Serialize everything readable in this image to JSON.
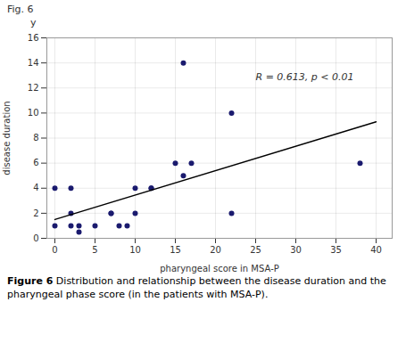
{
  "chart_data": {
    "type": "scatter",
    "fig_label": "Fig. 6",
    "y_axis_label": "y",
    "xlabel": "pharyngeal score in MSA-P",
    "ylabel": "disease duration",
    "caption_label": "Figure 6",
    "caption": " Distribution and relationship between the disease duration and the pharyngeal phase score (in the patients with MSA-P).",
    "series": [
      {
        "type": "scatter",
        "color": "#1a1a6e",
        "x": [
          0,
          0,
          2,
          2,
          2,
          3,
          3,
          5,
          7,
          7,
          8,
          9,
          10,
          10,
          12,
          12,
          15,
          16,
          16,
          17,
          22,
          22,
          38
        ],
        "values": [
          4,
          1,
          4,
          2,
          1,
          1,
          0.5,
          1,
          2,
          2,
          1,
          1,
          4,
          2,
          4,
          4,
          6,
          5,
          14,
          6,
          10,
          2,
          6
        ]
      },
      {
        "type": "line",
        "color": "#000000",
        "x": [
          0,
          40
        ],
        "values": [
          1.5,
          9.3
        ]
      }
    ],
    "annotations": [
      {
        "text": "R = 0.613, p < 0.01",
        "x": 25,
        "y": 13.2
      }
    ],
    "xlim": [
      -1,
      42
    ],
    "ylim": [
      0,
      16
    ],
    "xticks": [
      0,
      5,
      10,
      15,
      20,
      25,
      30,
      35,
      40
    ],
    "yticks": [
      0,
      2,
      4,
      6,
      8,
      10,
      12,
      14,
      16
    ],
    "grid": true
  }
}
